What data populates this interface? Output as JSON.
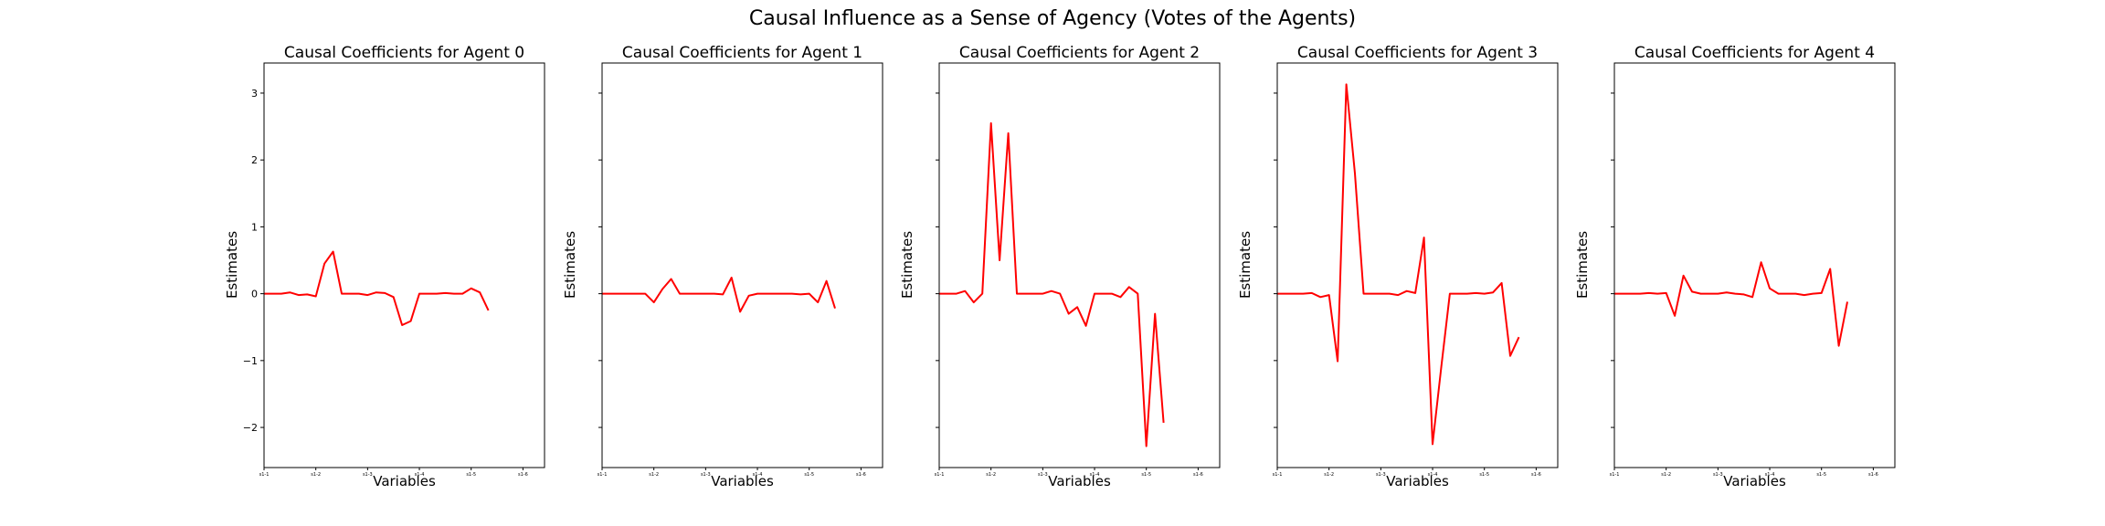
{
  "figure": {
    "title": "Causal Influence as a Sense of Agency (Votes of the Agents)"
  },
  "chart_data": [
    {
      "type": "line",
      "title": "Causal Coefficients for Agent 0",
      "xlabel": "Variables",
      "ylabel": "Estimates",
      "ylim": [
        -2.6,
        3.45
      ],
      "yticks": [
        -2,
        -1,
        0,
        1,
        2,
        3
      ],
      "xlim": [
        0,
        32.5
      ],
      "xtick_positions": [
        0,
        6,
        12,
        18,
        24,
        30
      ],
      "xtick_labels": [
        "s1-1",
        "s1-2",
        "s1-3",
        "s1-4",
        "s1-5",
        "s1-6"
      ],
      "series": [
        {
          "color": "#ff0000",
          "values": [
            0.0,
            0.0,
            0.0,
            0.02,
            -0.02,
            -0.01,
            -0.04,
            0.45,
            0.63,
            0.0,
            0.0,
            0.0,
            -0.02,
            0.02,
            0.01,
            -0.05,
            -0.47,
            -0.41,
            0.0,
            0.0,
            0.0,
            0.01,
            0.0,
            0.0,
            0.08,
            0.02,
            -0.25
          ]
        }
      ]
    },
    {
      "type": "line",
      "title": "Causal Coefficients for Agent 1",
      "xlabel": "Variables",
      "ylabel": "Estimates",
      "ylim": [
        -2.6,
        3.45
      ],
      "yticks": [
        -2,
        -1,
        0,
        1,
        2,
        3
      ],
      "xlim": [
        0,
        32.5
      ],
      "xtick_positions": [
        0,
        6,
        12,
        18,
        24,
        30
      ],
      "xtick_labels": [
        "s1-1",
        "s1-2",
        "s1-3",
        "s1-4",
        "s1-5",
        "s1-6"
      ],
      "series": [
        {
          "color": "#ff0000",
          "values": [
            0.0,
            0.0,
            0.0,
            0.0,
            0.0,
            0.0,
            -0.13,
            0.07,
            0.22,
            0.0,
            0.0,
            0.0,
            0.0,
            0.0,
            -0.01,
            0.24,
            -0.27,
            -0.03,
            0.0,
            0.0,
            0.0,
            0.0,
            0.0,
            -0.01,
            0.0,
            -0.13,
            0.19,
            -0.22
          ]
        }
      ]
    },
    {
      "type": "line",
      "title": "Causal Coefficients for Agent 2",
      "xlabel": "Variables",
      "ylabel": "Estimates",
      "ylim": [
        -2.6,
        3.45
      ],
      "yticks": [
        -2,
        -1,
        0,
        1,
        2,
        3
      ],
      "xlim": [
        0,
        32.5
      ],
      "xtick_positions": [
        0,
        6,
        12,
        18,
        24,
        30
      ],
      "xtick_labels": [
        "s1-1",
        "s1-2",
        "s1-3",
        "s1-4",
        "s1-5",
        "s1-6"
      ],
      "series": [
        {
          "color": "#ff0000",
          "values": [
            0.0,
            0.0,
            0.0,
            0.04,
            -0.13,
            0.0,
            2.55,
            0.5,
            2.4,
            0.0,
            0.0,
            0.0,
            0.0,
            0.04,
            0.0,
            -0.3,
            -0.2,
            -0.48,
            0.0,
            0.0,
            0.0,
            -0.05,
            0.1,
            0.0,
            -2.28,
            -0.3,
            -1.93
          ]
        }
      ]
    },
    {
      "type": "line",
      "title": "Causal Coefficients for Agent 3",
      "xlabel": "Variables",
      "ylabel": "Estimates",
      "ylim": [
        -2.6,
        3.45
      ],
      "yticks": [
        -2,
        -1,
        0,
        1,
        2,
        3
      ],
      "xlim": [
        0,
        32.5
      ],
      "xtick_positions": [
        0,
        6,
        12,
        18,
        24,
        30
      ],
      "xtick_labels": [
        "s1-1",
        "s1-2",
        "s1-3",
        "s1-4",
        "s1-5",
        "s1-6"
      ],
      "series": [
        {
          "color": "#ff0000",
          "values": [
            0.0,
            0.0,
            0.0,
            0.0,
            0.01,
            -0.05,
            -0.02,
            -1.01,
            3.13,
            1.8,
            0.0,
            0.0,
            0.0,
            0.0,
            -0.02,
            0.04,
            0.01,
            0.84,
            -2.25,
            -1.1,
            0.0,
            0.0,
            0.0,
            0.01,
            0.0,
            0.02,
            0.16,
            -0.93,
            -0.65
          ]
        }
      ]
    },
    {
      "type": "line",
      "title": "Causal Coefficients for Agent 4",
      "xlabel": "Variables",
      "ylabel": "Estimates",
      "ylim": [
        -2.6,
        3.45
      ],
      "yticks": [
        -2,
        -1,
        0,
        1,
        2,
        3
      ],
      "xlim": [
        0,
        32.5
      ],
      "xtick_positions": [
        0,
        6,
        12,
        18,
        24,
        30
      ],
      "xtick_labels": [
        "s1-1",
        "s1-2",
        "s1-3",
        "s1-4",
        "s1-5",
        "s1-6"
      ],
      "series": [
        {
          "color": "#ff0000",
          "values": [
            0.0,
            0.0,
            0.0,
            0.0,
            0.01,
            0.0,
            0.01,
            -0.33,
            0.27,
            0.03,
            0.0,
            0.0,
            0.0,
            0.02,
            0.0,
            -0.01,
            -0.05,
            0.47,
            0.08,
            0.0,
            0.0,
            0.0,
            -0.02,
            0.0,
            0.01,
            0.37,
            -0.78,
            -0.12
          ]
        }
      ]
    }
  ]
}
